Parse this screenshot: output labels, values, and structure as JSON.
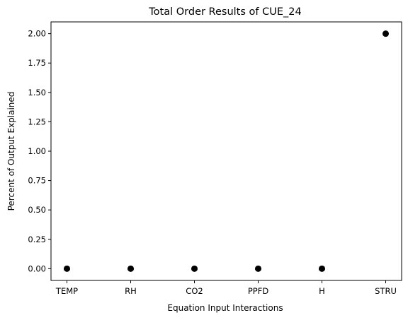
{
  "chart_data": {
    "type": "scatter",
    "title": "Total Order Results of CUE_24",
    "xlabel": "Equation Input Interactions",
    "ylabel": "Percent of Output Explained",
    "categories": [
      "TEMP",
      "RH",
      "CO2",
      "PPFD",
      "H",
      "STRU"
    ],
    "values": [
      0.0,
      0.0,
      0.0,
      0.0,
      0.0,
      2.0
    ],
    "ylim": [
      -0.1,
      2.1
    ],
    "yticks": [
      "0.00",
      "0.25",
      "0.50",
      "0.75",
      "1.00",
      "1.25",
      "1.50",
      "1.75",
      "2.00"
    ],
    "grid": false,
    "marker_color": "#000000"
  }
}
